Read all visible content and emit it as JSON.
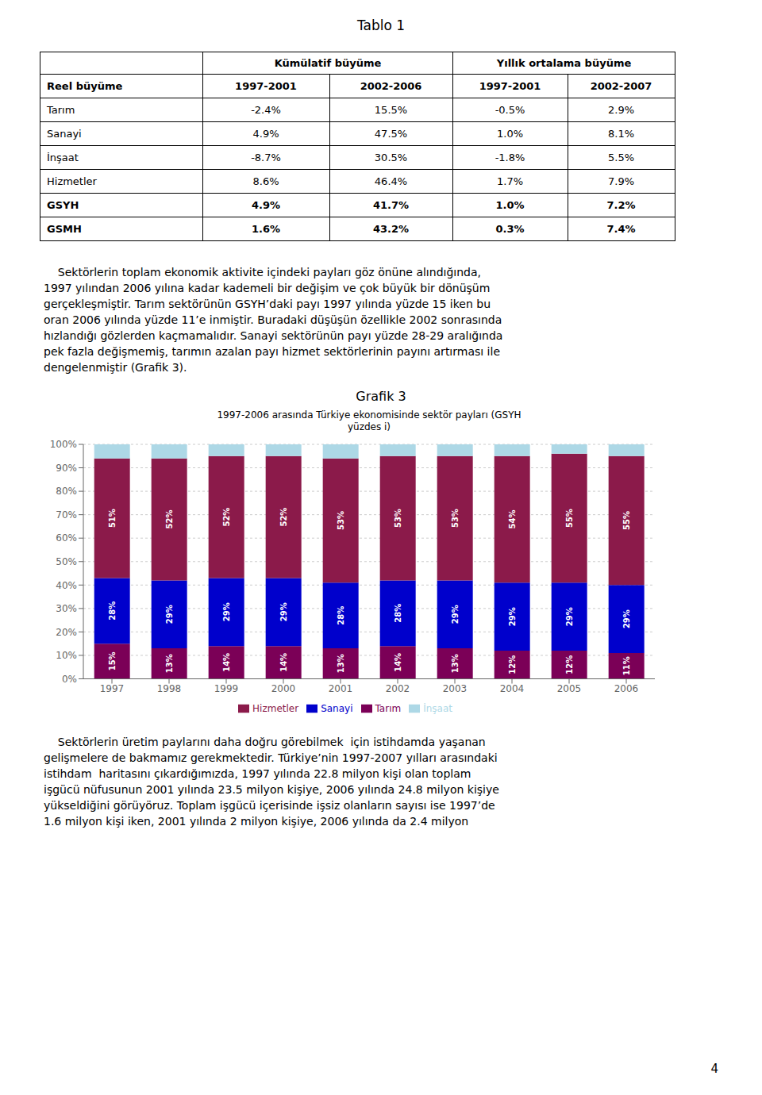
{
  "title": "Tablo 1",
  "table": {
    "header_groups": [
      "Kümülatif büyüme",
      "Yıllık ortalama büyüme"
    ],
    "header": [
      "Reel büyüme",
      "1997-2001",
      "2002-2006",
      "1997-2001",
      "2002-2007"
    ],
    "rows": [
      [
        "Tarım",
        "-2.4%",
        "15.5%",
        "-0.5%",
        "2.9%"
      ],
      [
        "Sanayi",
        "4.9%",
        "47.5%",
        "1.0%",
        "8.1%"
      ],
      [
        "İnşaat",
        "-8.7%",
        "30.5%",
        "-1.8%",
        "5.5%"
      ],
      [
        "Hizmetler",
        "8.6%",
        "46.4%",
        "1.7%",
        "7.9%"
      ],
      [
        "GSYH",
        "4.9%",
        "41.7%",
        "1.0%",
        "7.2%"
      ],
      [
        "GSMH",
        "1.6%",
        "43.2%",
        "0.3%",
        "7.4%"
      ]
    ]
  },
  "paragraph1": [
    "    Sektörlerin toplam ekonomik aktivite içindeki payları göz önüne alındığında,",
    "1997 yılından 2006 yılına kadar kademeli bir değişim ve çok büyük bir dönüşüm",
    "gerçekleşmiştir. Tarım sektörünün GSYH’daki payı 1997 yılında yüzde 15 iken bu",
    "oran 2006 yılında yüzde 11’e inmiştir. Buradaki düşüşün özellikle 2002 sonrasında",
    "hızlandığı gözlerden kaçmamalıdır. Sanayi sektörünün payı yüzde 28-29 aralığında",
    "pek fazla değişmemiş, tarımın azalan payı hizmet sektörlerinin payını artırması ile",
    "dengelenmiştir (Grafik 3)."
  ],
  "caption": "Grafik 3",
  "paragraph2": [
    "    Sektörlerin üretim paylarını daha doğru görebilmek  için istihdamda yaşanan",
    "gelişmelere de bakmamız gerekmektedir. Türkiye’nin 1997-2007 yılları arasındaki",
    "istihdam  haritasını çıkardığımızda, 1997 yılında 22.8 milyon kişi olan toplam",
    "işgücü nüfusunun 2001 yılında 23.5 milyon kişiye, 2006 yılında 24.8 milyon kişiye",
    "yükseldiğini görüyöruz. Toplam işgücü içerisinde işsiz olanların sayısı ise 1997’de",
    "1.6 milyon kişi iken, 2001 yılında 2 milyon kişiye, 2006 yılında da 2.4 milyon"
  ],
  "page_number": "4",
  "chart_data": {
    "type": "bar",
    "stacked": true,
    "title": "1997-2006 arasında Türkiye ekonomisinde sektör payları (GSYH\nyüzdes i)",
    "categories": [
      "1997",
      "1998",
      "1999",
      "2000",
      "2001",
      "2002",
      "2003",
      "2004",
      "2005",
      "2006"
    ],
    "series": [
      {
        "name": "Tarım",
        "color": "#7B0057",
        "values": [
          15,
          13,
          14,
          14,
          13,
          14,
          13,
          12,
          12,
          11
        ],
        "value_labels": [
          "15%",
          "13%",
          "14%",
          "14%",
          "13%",
          "14%",
          "13%",
          "12%",
          "12%",
          "11%"
        ]
      },
      {
        "name": "Sanayi",
        "color": "#0000CC",
        "values": [
          28,
          29,
          29,
          29,
          28,
          28,
          29,
          29,
          29,
          29
        ],
        "value_labels": [
          "28%",
          "29%",
          "29%",
          "29%",
          "28%",
          "28%",
          "29%",
          "29%",
          "29%",
          "29%"
        ]
      },
      {
        "name": "Hizmetler",
        "color": "#8B1A4A",
        "values": [
          51,
          52,
          52,
          52,
          53,
          53,
          53,
          54,
          55,
          55
        ],
        "value_labels": [
          "51%",
          "52%",
          "52%",
          "52%",
          "53%",
          "53%",
          "53%",
          "54%",
          "55%",
          "55%"
        ]
      },
      {
        "name": "İnşaat",
        "color": "#ADD8E6",
        "values": [
          6,
          6,
          5,
          5,
          6,
          5,
          5,
          5,
          4,
          5
        ]
      }
    ],
    "ylim": [
      0,
      100
    ],
    "yticks": [
      {
        "value": 0,
        "label": "0%"
      },
      {
        "value": 10,
        "label": "10%"
      },
      {
        "value": 20,
        "label": "20%"
      },
      {
        "value": 30,
        "label": "30%"
      },
      {
        "value": 40,
        "label": "40%"
      },
      {
        "value": 50,
        "label": "50%"
      },
      {
        "value": 60,
        "label": "60%"
      },
      {
        "value": 70,
        "label": "70%"
      },
      {
        "value": 80,
        "label": "80%"
      },
      {
        "value": 90,
        "label": "90%"
      },
      {
        "value": 100,
        "label": "100%"
      }
    ],
    "grid": true,
    "legend": "bottom"
  }
}
